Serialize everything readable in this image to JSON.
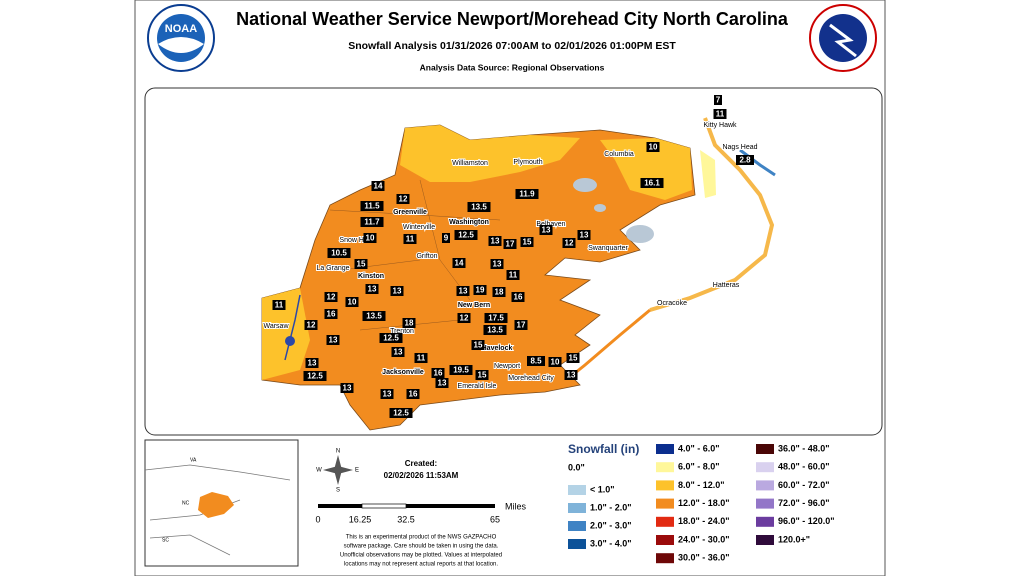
{
  "header": {
    "title": "National Weather Service Newport/Morehead City North Carolina",
    "subtitle": "Snowfall Analysis 01/31/2026 07:00AM to 02/01/2026 01:00PM EST",
    "source": "Analysis Data Source: Regional Observations"
  },
  "logos": {
    "left": "NOAA"
  },
  "cities": [
    "Williamston",
    "Plymouth",
    "Columbia",
    "Kitty Hawk",
    "Nags Head",
    "Greenville",
    "Washington",
    "Winterville",
    "Belhaven",
    "Swanquarter",
    "Snow Hill",
    "Grifton",
    "La Grange",
    "Kinston",
    "Ocracoke",
    "Hatteras",
    "New Bern",
    "Trenton",
    "Havelock",
    "Warsaw",
    "Newport",
    "Morehead City",
    "Jacksonville",
    "Emerald Isle"
  ],
  "observations": [
    "7",
    "11",
    "10",
    "16.1",
    "2.8",
    "14",
    "12",
    "11.5",
    "11.7",
    "10",
    "11",
    "9",
    "12.5",
    "13.5",
    "11.9",
    "13",
    "17",
    "15",
    "13",
    "12",
    "13",
    "10.5",
    "15",
    "14",
    "13",
    "11",
    "12",
    "10",
    "13",
    "13.5",
    "13",
    "13",
    "19",
    "18",
    "16",
    "11",
    "16",
    "12",
    "13",
    "18",
    "12",
    "17.5",
    "13.5",
    "17",
    "12.5",
    "13",
    "15",
    "11",
    "13",
    "12.5",
    "13",
    "16",
    "19.5",
    "15",
    "8.5",
    "10",
    "15",
    "13",
    "13",
    "16",
    "13",
    "12.5"
  ],
  "inset": {
    "labels": [
      "VA",
      "NC",
      "SC"
    ]
  },
  "info": {
    "created_label": "Created:",
    "created_time": "02/02/2026 11:53AM",
    "scale_labels": [
      "0",
      "16.25",
      "32.5",
      "65"
    ],
    "scale_unit": "Miles",
    "compass": [
      "N",
      "E",
      "S",
      "W"
    ],
    "disclaimer": [
      "This is an experimental product of the NWS GAZPACHO",
      "software package. Care should be taken in using the data.",
      "Unofficial observations may be plotted. Values at interpolated",
      "locations may not represent actual reports at that location."
    ]
  },
  "legend": {
    "title": "Snowfall (in)",
    "items": [
      {
        "label": "0.0\"",
        "color": "#ffffff"
      },
      {
        "label": "< 1.0\"",
        "color": "#b4d3e6"
      },
      {
        "label": "1.0\" - 2.0\"",
        "color": "#7fb3d9"
      },
      {
        "label": "2.0\" - 3.0\"",
        "color": "#3f83c4"
      },
      {
        "label": "3.0\" - 4.0\"",
        "color": "#0c5299"
      },
      {
        "label": "4.0\" - 6.0\"",
        "color": "#0b2e8e"
      },
      {
        "label": "6.0\" - 8.0\"",
        "color": "#fff79a"
      },
      {
        "label": "8.0\" - 12.0\"",
        "color": "#fdc22b"
      },
      {
        "label": "12.0\" - 18.0\"",
        "color": "#f28c1f"
      },
      {
        "label": "18.0\" - 24.0\"",
        "color": "#e22a12"
      },
      {
        "label": "24.0\" - 30.0\"",
        "color": "#9b0b0b"
      },
      {
        "label": "30.0\" - 36.0\"",
        "color": "#6e0707"
      },
      {
        "label": "36.0\" - 48.0\"",
        "color": "#4a0606"
      },
      {
        "label": "48.0\" - 60.0\"",
        "color": "#d9d1ef"
      },
      {
        "label": "60.0\" - 72.0\"",
        "color": "#baa9e0"
      },
      {
        "label": "72.0\" - 96.0\"",
        "color": "#9376c8"
      },
      {
        "label": "96.0\" - 120.0\"",
        "color": "#6b3c9f"
      },
      {
        "label": "120.0+\"",
        "color": "#2f0b3b"
      }
    ]
  }
}
